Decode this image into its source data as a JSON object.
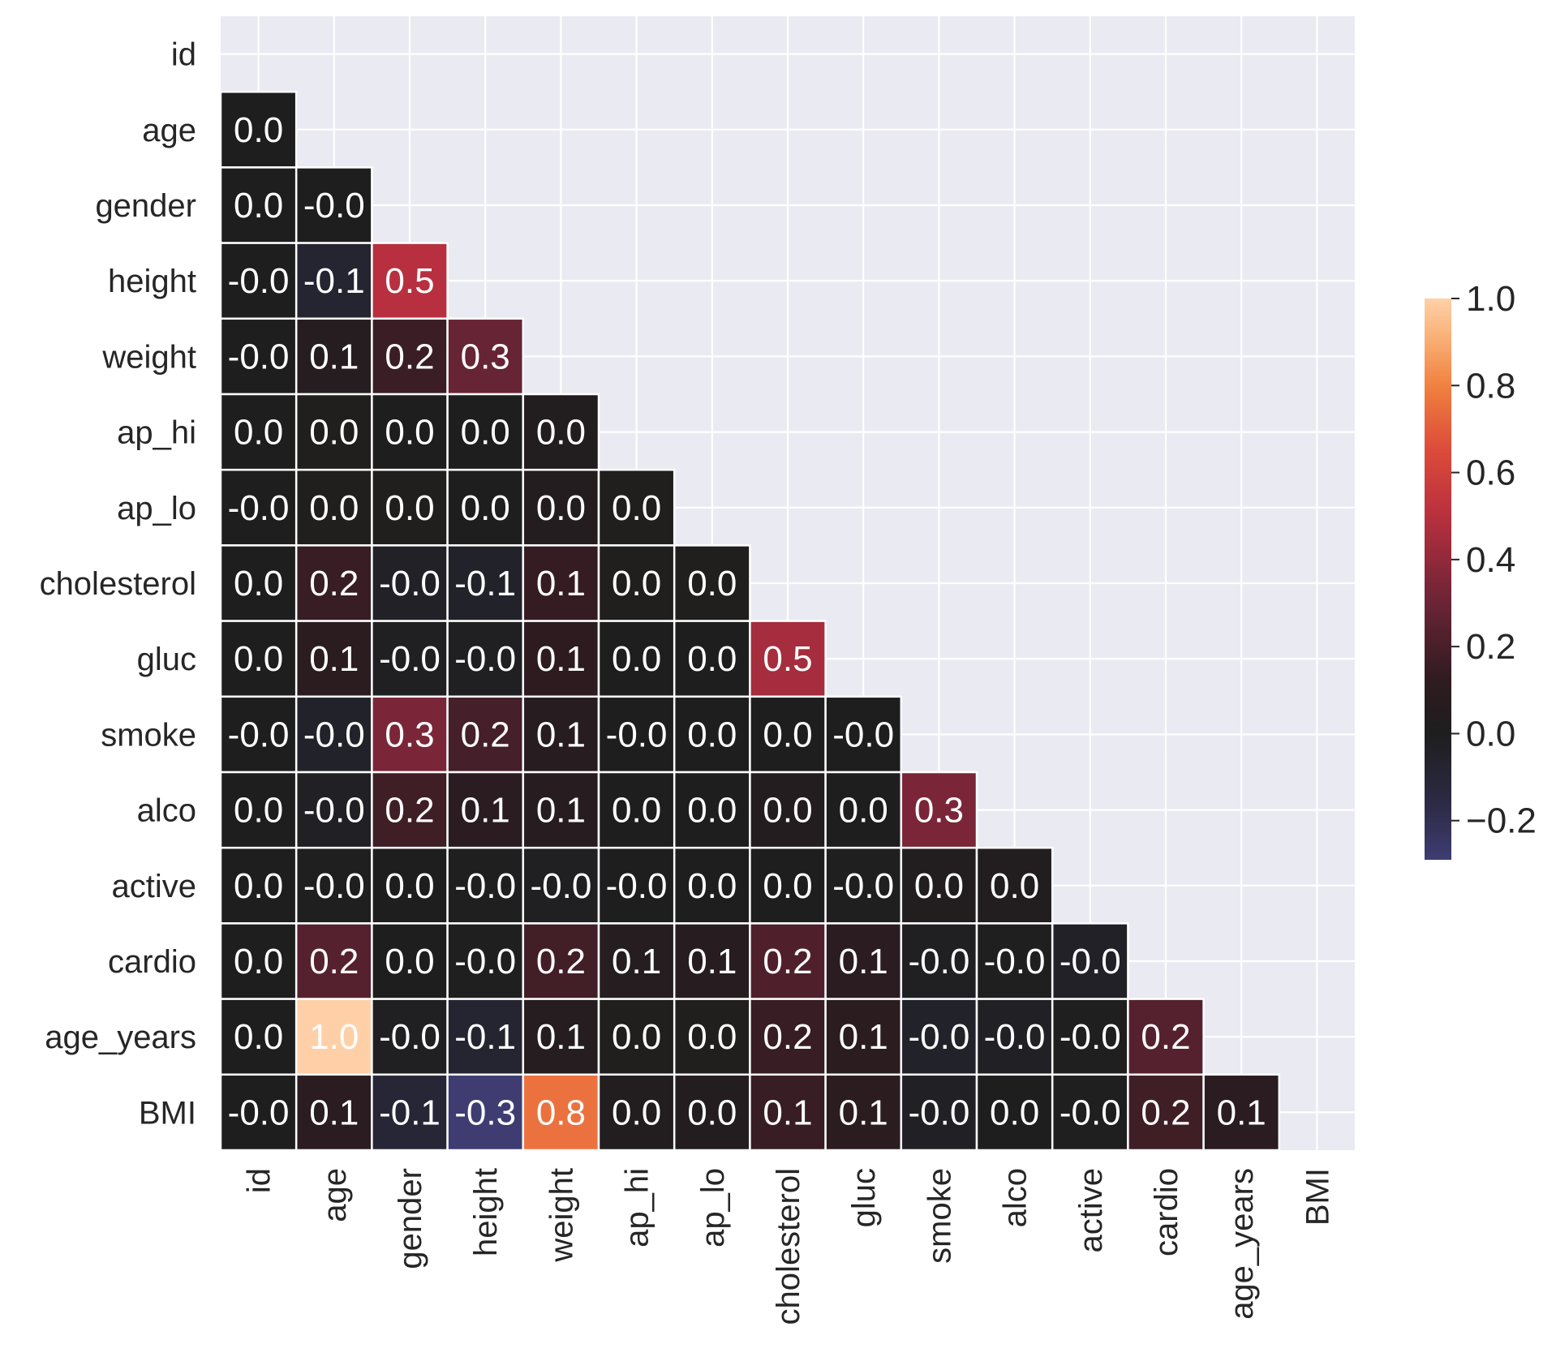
{
  "chart_data": {
    "type": "heatmap",
    "title": "",
    "xlabel": "",
    "ylabel": "",
    "mask": "upper-triangle-including-diagonal",
    "grid": true,
    "variables": [
      "id",
      "age",
      "gender",
      "height",
      "weight",
      "ap_hi",
      "ap_lo",
      "cholesterol",
      "gluc",
      "smoke",
      "alco",
      "active",
      "cardio",
      "age_years",
      "BMI"
    ],
    "values": [
      [],
      [
        0.0
      ],
      [
        0.0,
        -0.0
      ],
      [
        -0.0,
        -0.1,
        0.5
      ],
      [
        -0.0,
        0.1,
        0.2,
        0.3
      ],
      [
        0.0,
        0.0,
        0.0,
        0.0,
        0.0
      ],
      [
        -0.0,
        0.0,
        0.0,
        0.0,
        0.0,
        0.0
      ],
      [
        0.0,
        0.2,
        -0.0,
        -0.1,
        0.1,
        0.0,
        0.0
      ],
      [
        0.0,
        0.1,
        -0.0,
        -0.0,
        0.1,
        0.0,
        0.0,
        0.5
      ],
      [
        -0.0,
        -0.0,
        0.3,
        0.2,
        0.1,
        -0.0,
        0.0,
        0.0,
        -0.0
      ],
      [
        0.0,
        -0.0,
        0.2,
        0.1,
        0.1,
        0.0,
        0.0,
        0.0,
        0.0,
        0.3
      ],
      [
        0.0,
        -0.0,
        0.0,
        -0.0,
        -0.0,
        -0.0,
        0.0,
        0.0,
        -0.0,
        0.0,
        0.0
      ],
      [
        0.0,
        0.2,
        0.0,
        -0.0,
        0.2,
        0.1,
        0.1,
        0.2,
        0.1,
        -0.0,
        -0.0,
        -0.0
      ],
      [
        0.0,
        1.0,
        -0.0,
        -0.1,
        0.1,
        0.0,
        0.0,
        0.2,
        0.1,
        -0.0,
        -0.0,
        -0.0,
        0.2
      ],
      [
        -0.0,
        0.1,
        -0.1,
        -0.3,
        0.8,
        0.0,
        0.0,
        0.1,
        0.1,
        -0.0,
        0.0,
        -0.0,
        0.2,
        0.1
      ]
    ],
    "fill_values": [
      [],
      [
        0.0
      ],
      [
        0.0,
        -0.0
      ],
      [
        -0.0,
        -0.08,
        0.5
      ],
      [
        -0.0,
        0.05,
        0.16,
        0.29
      ],
      [
        0.0,
        0.02,
        0.01,
        0.01,
        0.03
      ],
      [
        -0.0,
        0.02,
        0.02,
        0.01,
        0.04,
        0.02
      ],
      [
        0.0,
        0.15,
        -0.04,
        -0.05,
        0.14,
        0.02,
        0.02
      ],
      [
        0.0,
        0.1,
        -0.02,
        -0.02,
        0.11,
        0.01,
        0.01,
        0.45
      ],
      [
        -0.0,
        -0.05,
        0.34,
        0.19,
        0.07,
        -0.0,
        0.0,
        0.01,
        -0.0
      ],
      [
        0.0,
        -0.03,
        0.17,
        0.09,
        0.07,
        0.0,
        0.01,
        0.04,
        0.01,
        0.34
      ],
      [
        0.0,
        -0.01,
        0.01,
        -0.01,
        -0.02,
        -0.0,
        0.0,
        0.01,
        -0.01,
        0.03,
        0.03
      ],
      [
        0.0,
        0.24,
        0.01,
        -0.01,
        0.18,
        0.05,
        0.07,
        0.22,
        0.09,
        -0.02,
        -0.01,
        -0.04
      ],
      [
        0.0,
        1.0,
        -0.02,
        -0.08,
        0.05,
        0.02,
        0.02,
        0.15,
        0.1,
        -0.05,
        -0.03,
        -0.01,
        0.24
      ],
      [
        -0.0,
        0.09,
        -0.1,
        -0.29,
        0.76,
        0.03,
        0.04,
        0.15,
        0.1,
        -0.03,
        0.01,
        -0.01,
        0.17,
        0.09
      ]
    ],
    "colorbar": {
      "range": [
        -0.29,
        1.0
      ],
      "ticks": [
        "−0.2",
        "0.0",
        "0.2",
        "0.4",
        "0.6",
        "0.8",
        "1.0"
      ],
      "tick_values": [
        -0.2,
        0.0,
        0.2,
        0.4,
        0.6,
        0.8,
        1.0
      ],
      "colors": {
        "min": "#3f3c72",
        "center": "#1e1e1e",
        "max": "#ffd0a8"
      }
    },
    "colors": {
      "background": "#eaeaf2",
      "gridline": "#ffffff",
      "cell_border": "#ffffff",
      "text": "#ffffff",
      "tick_text": "#262626"
    }
  }
}
